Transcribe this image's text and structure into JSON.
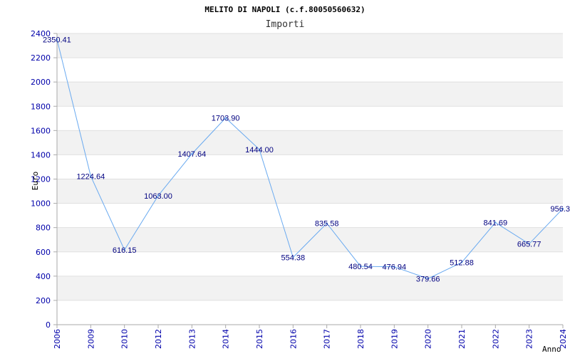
{
  "chart_data": {
    "type": "line",
    "title": "MELITO DI NAPOLI (c.f.80050560632)",
    "subtitle": "Importi",
    "xlabel": "Anno",
    "ylabel": "Euro",
    "categories": [
      "2006",
      "2009",
      "2010",
      "2012",
      "2013",
      "2014",
      "2015",
      "2016",
      "2017",
      "2018",
      "2019",
      "2020",
      "2021",
      "2022",
      "2023",
      "2024"
    ],
    "values": [
      2350.41,
      1224.64,
      616.15,
      1063.0,
      1407.64,
      1703.9,
      1444.0,
      554.38,
      835.58,
      480.54,
      476.94,
      379.66,
      512.88,
      841.69,
      665.77,
      956.3
    ],
    "data_labels": [
      "2350.41",
      "1224.64",
      "616.15",
      "1063.00",
      "1407.64",
      "1703.90",
      "1444.00",
      "554.38",
      "835.58",
      "480.54",
      "476.94",
      "379.66",
      "512.88",
      "841.69",
      "665.77",
      "956.3"
    ],
    "y_ticks": [
      "0",
      "200",
      "400",
      "600",
      "800",
      "1000",
      "1200",
      "1400",
      "1600",
      "1800",
      "2000",
      "2200",
      "2400"
    ],
    "ylim": [
      0,
      2400
    ],
    "grid": true,
    "colors": {
      "line": "#6aaaf0",
      "band": "#f2f2f2",
      "axis": "#aaaaaa",
      "tick_text": "#0000aa",
      "data_label": "#000080"
    }
  }
}
